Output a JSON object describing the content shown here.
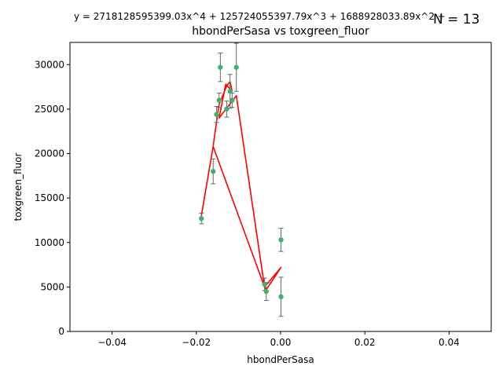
{
  "chart_data": {
    "type": "scatter",
    "title": "hbondPerSasa vs toxgreen_fluor",
    "equation": "y = 2718128595399.03x^4 + 125724055397.79x^3 + 1688928033.89x^2 +",
    "n_label": "N = 13",
    "xlabel": "hbondPerSasa",
    "ylabel": "toxgreen_fluor",
    "xlim": [
      -0.05,
      0.05
    ],
    "ylim": [
      0,
      32500
    ],
    "x_ticks": [
      -0.04,
      -0.02,
      0.0,
      0.02,
      0.04
    ],
    "x_tick_labels": [
      "−0.04",
      "−0.02",
      "0.00",
      "0.02",
      "0.04"
    ],
    "y_ticks": [
      0,
      5000,
      10000,
      15000,
      20000,
      25000,
      30000
    ],
    "y_tick_labels": [
      "0",
      "5000",
      "10000",
      "15000",
      "20000",
      "25000",
      "30000"
    ],
    "grid": false,
    "points": [
      {
        "x": -0.0188,
        "y": 12700,
        "err": 600
      },
      {
        "x": -0.016,
        "y": 18000,
        "err": 1400
      },
      {
        "x": -0.0152,
        "y": 24400,
        "err": 900
      },
      {
        "x": -0.0146,
        "y": 26000,
        "err": 800
      },
      {
        "x": -0.0143,
        "y": 29700,
        "err": 1600
      },
      {
        "x": -0.0128,
        "y": 25000,
        "err": 900
      },
      {
        "x": -0.012,
        "y": 27000,
        "err": 1900
      },
      {
        "x": -0.0115,
        "y": 26000,
        "err": 800
      },
      {
        "x": -0.0105,
        "y": 29700,
        "err": 2700
      },
      {
        "x": -0.0038,
        "y": 5300,
        "err": 700
      },
      {
        "x": -0.0034,
        "y": 4500,
        "err": 1000
      },
      {
        "x": 0.0001,
        "y": 10300,
        "err": 1300
      },
      {
        "x": 0.0001,
        "y": 3900,
        "err": 2200
      }
    ],
    "fit_line": {
      "x": [
        -0.0188,
        -0.016,
        -0.0152,
        -0.0146,
        -0.0128,
        -0.012,
        -0.0115,
        -0.013,
        -0.0146,
        -0.0105,
        -0.0038,
        -0.0034,
        0.0001,
        -0.0038,
        -0.016,
        -0.0188
      ],
      "y": [
        13000,
        20800,
        23600,
        25500,
        27600,
        28100,
        27000,
        27800,
        24000,
        26500,
        5000,
        4700,
        7200,
        5000,
        20800,
        13000
      ]
    },
    "colors": {
      "point": "#3cb371",
      "error_bar": "#666666",
      "fit_line": "#ff0000"
    }
  }
}
